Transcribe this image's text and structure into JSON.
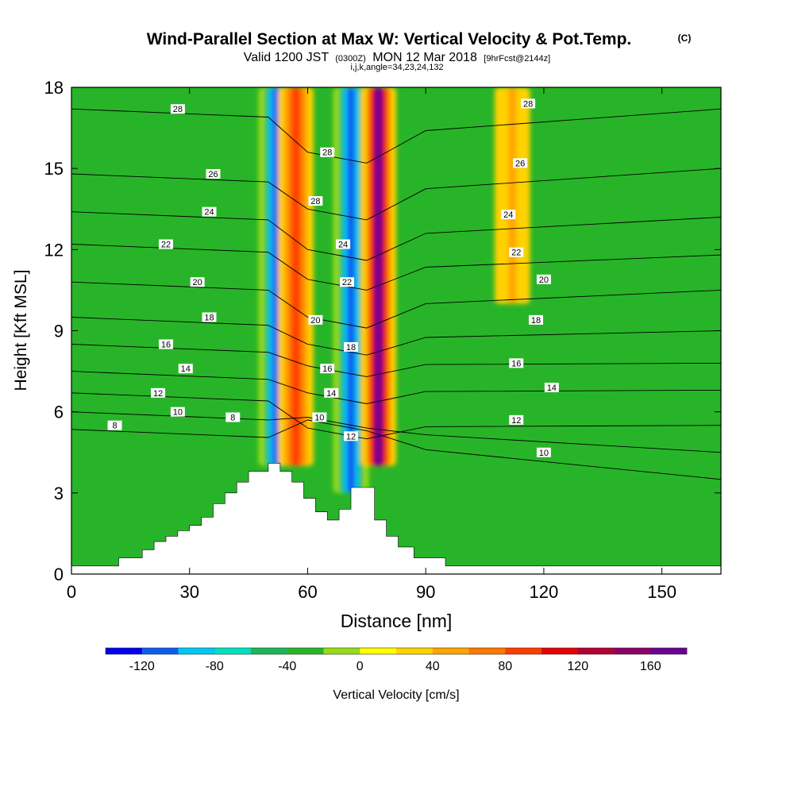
{
  "chart_data": {
    "type": "heatmap",
    "title": "Wind-Parallel Section at Max W: Vertical Velocity & Pot.Temp.",
    "title_tag": "(C)",
    "subtitle_main": "Valid 1200 JST",
    "subtitle_utc": "(0300Z)",
    "subtitle_date": "MON 12 Mar 2018",
    "subtitle_fcst": "[9hrFcst@2144z]",
    "subtitle_index": "i,j,k,angle=34,23,24,132",
    "xlabel": "Distance [nm]",
    "ylabel": "Height [Kft MSL]",
    "xlim": [
      0,
      165
    ],
    "ylim": [
      0,
      18
    ],
    "x_ticks": [
      0,
      30,
      60,
      90,
      120,
      150
    ],
    "y_ticks": [
      0,
      3,
      6,
      9,
      12,
      15,
      18
    ],
    "colorbar": {
      "label": "Vertical Velocity [cm/s]",
      "range": [
        -140,
        180
      ],
      "tick_values": [
        -120,
        -80,
        -40,
        0,
        40,
        80,
        120,
        160
      ],
      "colors": [
        "#0000ee",
        "#0a5cf0",
        "#00c8f5",
        "#00e0c0",
        "#18b858",
        "#28b428",
        "#96dc14",
        "#ffff00",
        "#ffd200",
        "#ffa500",
        "#ff7800",
        "#ff3c00",
        "#e60000",
        "#b40032",
        "#8c0064",
        "#6a0090"
      ]
    },
    "vertical_velocity_features": [
      {
        "kind": "downdraft",
        "x_center": 52,
        "height_range": [
          4,
          18
        ],
        "peak_cms": -120
      },
      {
        "kind": "updraft",
        "x_center": 57,
        "height_range": [
          4,
          18
        ],
        "peak_cms": 80
      },
      {
        "kind": "downdraft",
        "x_center": 71,
        "height_range": [
          3,
          18
        ],
        "peak_cms": -120
      },
      {
        "kind": "updraft",
        "x_center": 78,
        "height_range": [
          4,
          18
        ],
        "peak_cms": 160
      },
      {
        "kind": "updraft",
        "x_center": 112,
        "height_range": [
          10,
          18
        ],
        "peak_cms": 40
      }
    ],
    "terrain_profile": {
      "x": [
        0,
        12,
        18,
        21,
        24,
        27,
        30,
        33,
        36,
        39,
        42,
        45,
        50,
        53,
        56,
        59,
        62,
        65,
        68,
        71,
        74,
        77,
        80,
        83,
        87,
        95,
        165
      ],
      "height": [
        0.3,
        0.6,
        0.9,
        1.2,
        1.4,
        1.6,
        1.8,
        2.1,
        2.6,
        3.0,
        3.4,
        3.8,
        4.1,
        3.8,
        3.4,
        2.8,
        2.3,
        2.0,
        2.4,
        3.2,
        3.2,
        2.0,
        1.4,
        1.0,
        0.6,
        0.3,
        0.3
      ]
    },
    "isentropes": [
      {
        "label": "8",
        "y_left": 5.35,
        "y_mid": 5.7,
        "y_right": 3.5
      },
      {
        "label": "10",
        "y_left": 6.0,
        "y_mid": 5.8,
        "y_right": 4.5
      },
      {
        "label": "12",
        "y_left": 6.7,
        "y_mid": 5.4,
        "y_right": 5.5
      },
      {
        "label": "14",
        "y_left": 7.5,
        "y_mid": 6.7,
        "y_right": 6.8
      },
      {
        "label": "16",
        "y_left": 8.5,
        "y_mid": 7.7,
        "y_right": 7.8
      },
      {
        "label": "18",
        "y_left": 9.5,
        "y_mid": 8.5,
        "y_right": 9.0
      },
      {
        "label": "20",
        "y_left": 10.8,
        "y_mid": 9.5,
        "y_right": 10.5
      },
      {
        "label": "22",
        "y_left": 12.2,
        "y_mid": 10.9,
        "y_right": 11.8
      },
      {
        "label": "24",
        "y_left": 13.4,
        "y_mid": 12.0,
        "y_right": 13.2
      },
      {
        "label": "26",
        "y_left": 14.8,
        "y_mid": 13.5,
        "y_right": 15.0
      },
      {
        "label": "28",
        "y_left": 17.2,
        "y_mid": 15.6,
        "y_right": 17.2
      }
    ],
    "contour_labels": [
      {
        "text": "28",
        "x": 27,
        "y": 17.2
      },
      {
        "text": "26",
        "x": 36,
        "y": 14.8
      },
      {
        "text": "24",
        "x": 35,
        "y": 13.4
      },
      {
        "text": "22",
        "x": 24,
        "y": 12.2
      },
      {
        "text": "20",
        "x": 32,
        "y": 10.8
      },
      {
        "text": "18",
        "x": 35,
        "y": 9.5
      },
      {
        "text": "16",
        "x": 24,
        "y": 8.5
      },
      {
        "text": "14",
        "x": 29,
        "y": 7.6
      },
      {
        "text": "12",
        "x": 22,
        "y": 6.7
      },
      {
        "text": "10",
        "x": 27,
        "y": 6.0
      },
      {
        "text": "8",
        "x": 41,
        "y": 5.8
      },
      {
        "text": "8",
        "x": 11,
        "y": 5.5
      },
      {
        "text": "28",
        "x": 65,
        "y": 15.6
      },
      {
        "text": "28",
        "x": 62,
        "y": 13.8
      },
      {
        "text": "24",
        "x": 69,
        "y": 12.2
      },
      {
        "text": "22",
        "x": 70,
        "y": 10.8
      },
      {
        "text": "20",
        "x": 62,
        "y": 9.4
      },
      {
        "text": "18",
        "x": 71,
        "y": 8.4
      },
      {
        "text": "16",
        "x": 65,
        "y": 7.6
      },
      {
        "text": "14",
        "x": 66,
        "y": 6.7
      },
      {
        "text": "10",
        "x": 63,
        "y": 5.8
      },
      {
        "text": "12",
        "x": 71,
        "y": 5.1
      },
      {
        "text": "28",
        "x": 116,
        "y": 17.4
      },
      {
        "text": "26",
        "x": 114,
        "y": 15.2
      },
      {
        "text": "24",
        "x": 111,
        "y": 13.3
      },
      {
        "text": "22",
        "x": 113,
        "y": 11.9
      },
      {
        "text": "20",
        "x": 120,
        "y": 10.9
      },
      {
        "text": "18",
        "x": 118,
        "y": 9.4
      },
      {
        "text": "16",
        "x": 113,
        "y": 7.8
      },
      {
        "text": "14",
        "x": 122,
        "y": 6.9
      },
      {
        "text": "12",
        "x": 113,
        "y": 5.7
      },
      {
        "text": "10",
        "x": 120,
        "y": 4.5
      }
    ]
  }
}
